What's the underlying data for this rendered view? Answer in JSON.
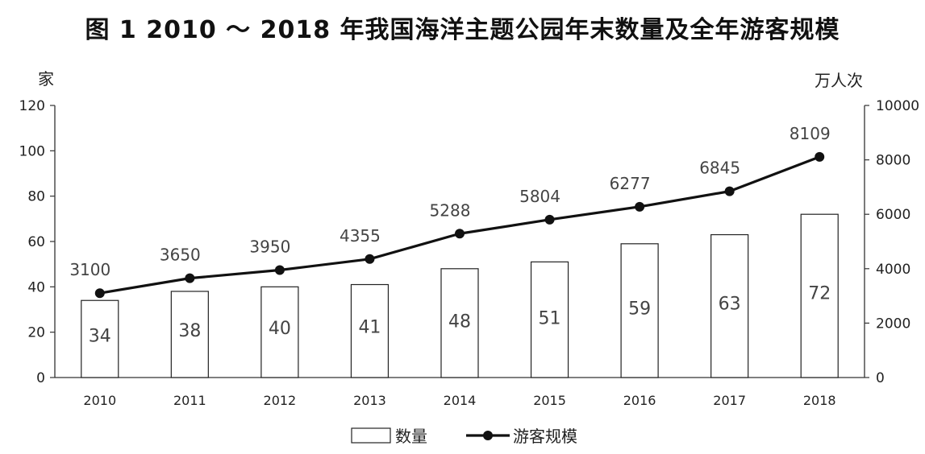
{
  "title": "图 1  2010 ～ 2018 年我国海洋主题公园年末数量及全年游客规模",
  "chart_data": {
    "type": "bar",
    "categories": [
      "2010",
      "2011",
      "2012",
      "2013",
      "2014",
      "2015",
      "2016",
      "2017",
      "2018"
    ],
    "series": [
      {
        "name": "数量",
        "type": "bar",
        "axis": "left",
        "values": [
          34,
          38,
          40,
          41,
          48,
          51,
          59,
          63,
          72
        ]
      },
      {
        "name": "游客规模",
        "type": "line",
        "axis": "right",
        "values": [
          3100,
          3650,
          3950,
          4355,
          5288,
          5804,
          6277,
          6845,
          8109
        ]
      }
    ],
    "left_axis": {
      "unit": "家",
      "ylim": [
        0,
        120
      ],
      "ticks": [
        "0",
        "20",
        "40",
        "60",
        "80",
        "100",
        "120"
      ]
    },
    "right_axis": {
      "unit": "万人次",
      "ylim": [
        0,
        10000
      ],
      "ticks": [
        "0",
        "2000",
        "4000",
        "6000",
        "8000",
        "10000"
      ]
    },
    "grid": false,
    "legend": "bottom-center"
  }
}
